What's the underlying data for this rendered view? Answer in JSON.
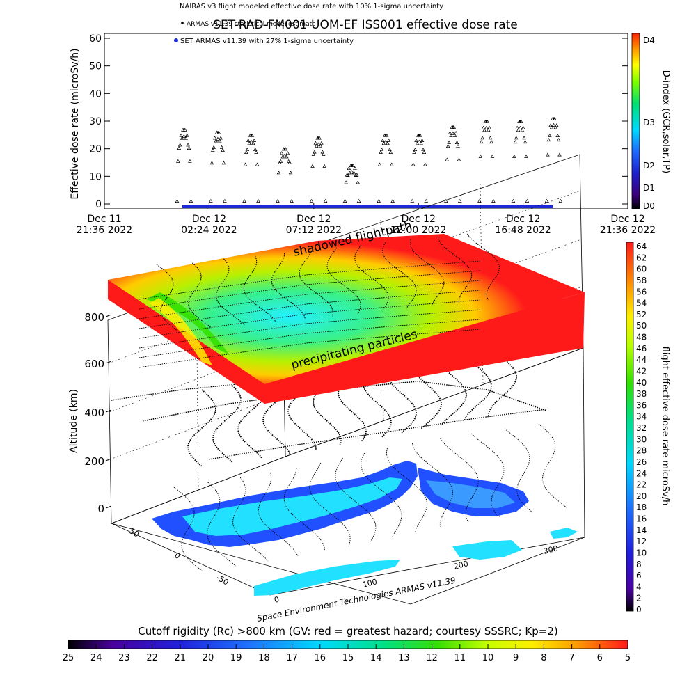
{
  "header": {
    "title_main": "SET-RAD-FM001 UOM-EF ISS001 effective dose rate",
    "legend_lines": [
      "NAIRAS v3 flight modeled effective dose rate with 10% 1-sigma uncertainty",
      "ARMAS v11.39 statistical model estimate",
      "SET ARMAS v11.39 with 27% 1-sigma uncertainty"
    ]
  },
  "top_chart": {
    "ylabel": "Effective dose rate (microSv/h)",
    "y_ticks": [
      "0",
      "10",
      "20",
      "30",
      "40",
      "50",
      "60"
    ],
    "x_tick_labels": [
      [
        "Dec 11",
        "21:36 2022"
      ],
      [
        "Dec 12",
        "02:24 2022"
      ],
      [
        "Dec 12",
        "07:12 2022"
      ],
      [
        "Dec 12",
        "12:00 2022"
      ],
      [
        "Dec 12",
        "16:48 2022"
      ],
      [
        "Dec 12",
        "21:36 2022"
      ]
    ]
  },
  "dindex_colorbar": {
    "label": "D-index (GCR,solar,TP)",
    "labels": [
      "D4",
      "D3",
      "D2",
      "D1",
      "D0"
    ]
  },
  "right_colorbar": {
    "label": "flight effective dose rate microSv/h",
    "ticks": [
      "0",
      "2",
      "4",
      "6",
      "8",
      "10",
      "12",
      "14",
      "16",
      "18",
      "20",
      "22",
      "24",
      "26",
      "28",
      "30",
      "32",
      "34",
      "36",
      "38",
      "40",
      "42",
      "44",
      "46",
      "48",
      "50",
      "52",
      "54",
      "56",
      "58",
      "60",
      "62",
      "64"
    ]
  },
  "globe": {
    "zlabel": "Altitude (km)",
    "z_ticks": [
      "0",
      "200",
      "400",
      "600",
      "800"
    ],
    "lat_ticks": [
      "50",
      "0",
      "-50"
    ],
    "lon_ticks": [
      "0",
      "100",
      "200",
      "300"
    ],
    "label_shadowed": "shadowed flightpath",
    "label_precipitating": "precipitating particles",
    "credit": "Space Environment Technologies ARMAS v11.39"
  },
  "bottom_colorbar": {
    "title": "Cutoff rigidity (Rc) >800 km (GV: red = greatest hazard; courtesy SSSRC; Kp=2)",
    "ticks": [
      "25",
      "24",
      "23",
      "22",
      "21",
      "20",
      "19",
      "18",
      "17",
      "16",
      "15",
      "14",
      "13",
      "12",
      "11",
      "10",
      "9",
      "8",
      "7",
      "6",
      "5"
    ]
  },
  "chart_data": [
    {
      "type": "scatter",
      "title": "SET-RAD-FM001 UOM-EF ISS001 effective dose rate",
      "xlabel": "",
      "ylabel": "Effective dose rate (microSv/h)",
      "ylim": [
        0,
        60
      ],
      "xlim": [
        "2022-12-11 21:36",
        "2022-12-12 21:36"
      ],
      "series": [
        {
          "name": "NAIRAS v3 flight modeled effective dose rate with 10% 1-sigma uncertainty",
          "marker": "triangle",
          "color": "#000000",
          "x": [
            "2022-12-12 01:15",
            "2022-12-12 02:48",
            "2022-12-12 04:20",
            "2022-12-12 05:52",
            "2022-12-12 07:25",
            "2022-12-12 08:57",
            "2022-12-12 10:30",
            "2022-12-12 12:02",
            "2022-12-12 13:35",
            "2022-12-12 15:07",
            "2022-12-12 16:40",
            "2022-12-12 18:12"
          ],
          "y": [
            27,
            26,
            25,
            20,
            24,
            14,
            25,
            25,
            28,
            30,
            30,
            31
          ]
        },
        {
          "name": "SET ARMAS v11.39 with 27% 1-sigma uncertainty",
          "marker": "dot",
          "color": "#1a2ad8",
          "x": [
            "2022-12-12 01:10",
            "2022-12-12 18:10"
          ],
          "y": [
            0,
            0
          ]
        }
      ]
    }
  ],
  "colors": {
    "hazard_red": "#ff1a1a",
    "ocean_cyan": "#22e0ff",
    "land_blue": "#2050ff",
    "series_blue": "#1a2ad8"
  }
}
